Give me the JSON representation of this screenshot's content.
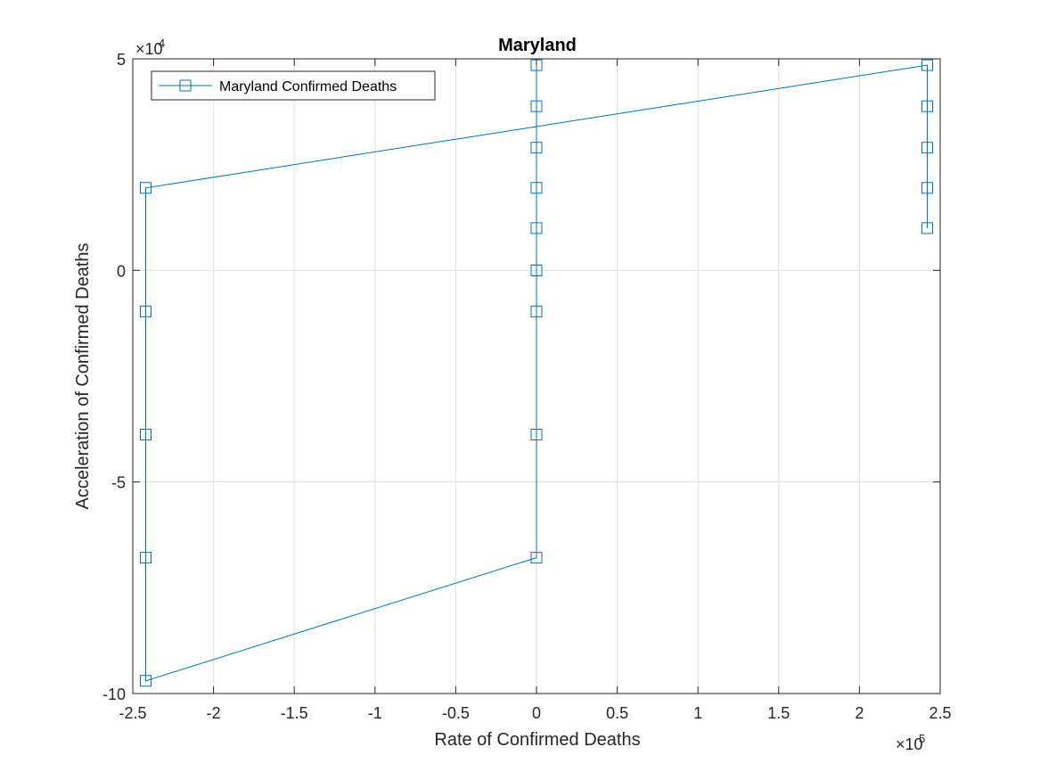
{
  "chart_data": {
    "type": "line",
    "title": "Maryland",
    "xlabel": "Rate of Confirmed Deaths",
    "ylabel": "Acceleration of Confirmed Deaths",
    "xlim": [
      -250000,
      250000
    ],
    "ylim": [
      -100000,
      50000
    ],
    "x_multiplier_label": "×10",
    "x_multiplier_exp": "5",
    "y_multiplier_label": "×10",
    "y_multiplier_exp": "4",
    "x_ticks": [
      -250000,
      -200000,
      -150000,
      -100000,
      -50000,
      0,
      50000,
      100000,
      150000,
      200000,
      250000
    ],
    "x_tick_labels": [
      "-2.5",
      "-2",
      "-1.5",
      "-1",
      "-0.5",
      "0",
      "0.5",
      "1",
      "1.5",
      "2",
      "2.5"
    ],
    "y_ticks": [
      -100000,
      -50000,
      0,
      50000
    ],
    "y_tick_labels": [
      "-10",
      "-5",
      "0",
      "5"
    ],
    "grid": true,
    "legend_position": "top-left",
    "series": [
      {
        "name": "Maryland Confirmed Deaths",
        "color": "#0072BD",
        "marker": "square",
        "points": [
          [
            242000,
            10000
          ],
          [
            242000,
            19500
          ],
          [
            242000,
            29000
          ],
          [
            242000,
            38800
          ],
          [
            242000,
            48500
          ],
          [
            -242000,
            19500
          ],
          [
            -242000,
            -9700
          ],
          [
            -242000,
            -38800
          ],
          [
            -242000,
            -67900
          ],
          [
            -242000,
            -97000
          ],
          [
            0,
            -67900
          ],
          [
            0,
            -38800
          ],
          [
            0,
            -9700
          ],
          [
            0,
            0
          ],
          [
            0,
            0
          ],
          [
            0,
            10000
          ],
          [
            0,
            19500
          ],
          [
            0,
            29000
          ],
          [
            0,
            38800
          ],
          [
            0,
            48500
          ]
        ]
      }
    ]
  }
}
